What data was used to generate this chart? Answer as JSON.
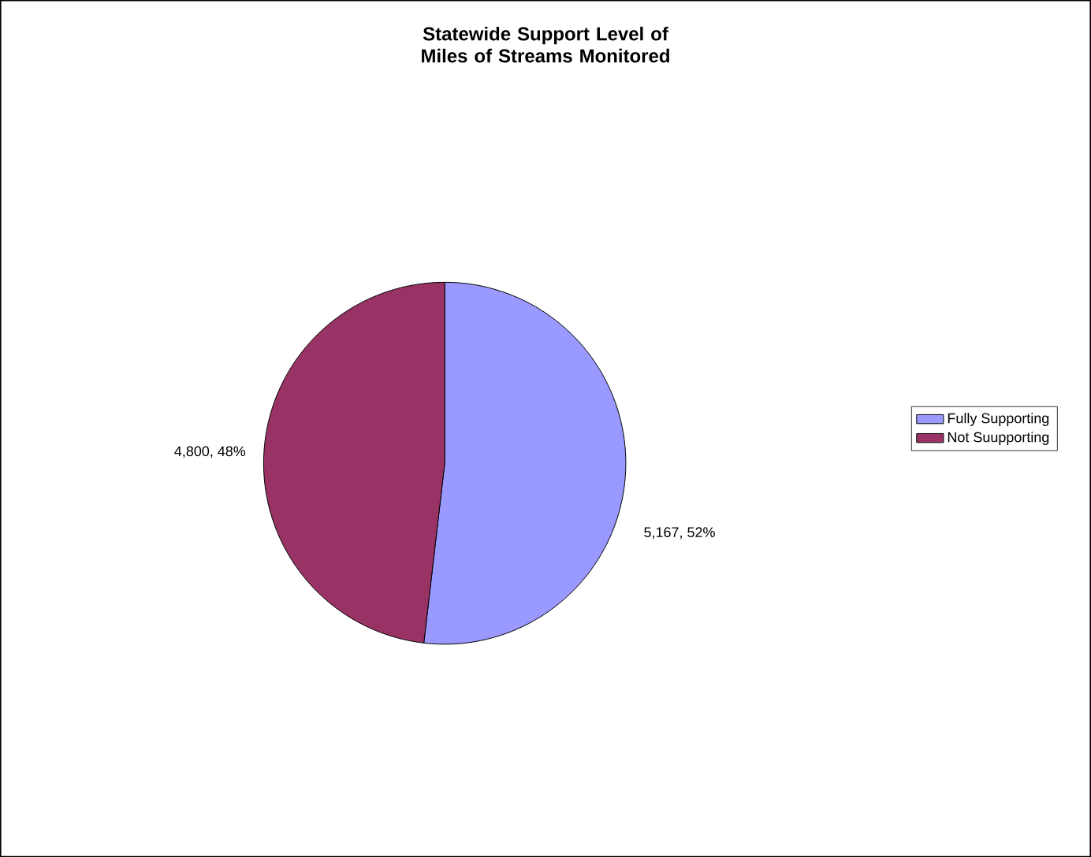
{
  "chart_data": {
    "type": "pie",
    "title": "Statewide Support Level of Miles of Streams Monitored",
    "categories": [
      "Fully Supporting",
      "Not Suupporting"
    ],
    "values": [
      5167,
      4800
    ],
    "value_labels": [
      "5,167, 52%",
      "4,800, 48%"
    ],
    "colors": [
      "#9999ff",
      "#993366"
    ],
    "legend": "right"
  }
}
